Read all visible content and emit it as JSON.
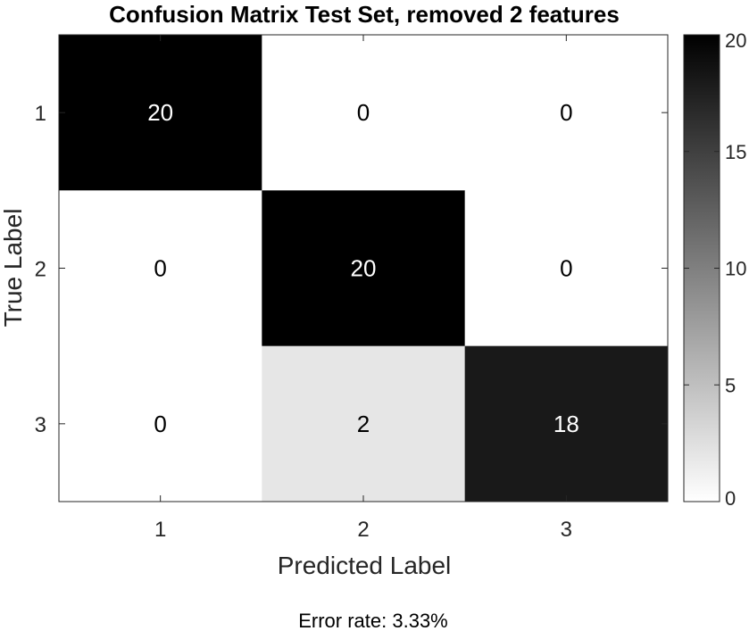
{
  "chart_data": {
    "type": "heatmap",
    "title": "Confusion Matrix Test Set, removed 2 features",
    "xlabel": "Predicted Label",
    "ylabel": "True Label",
    "x_categories": [
      "1",
      "2",
      "3"
    ],
    "y_categories": [
      "1",
      "2",
      "3"
    ],
    "matrix": [
      [
        20,
        0,
        0
      ],
      [
        0,
        20,
        0
      ],
      [
        0,
        2,
        18
      ]
    ],
    "colormap": "gray-reversed",
    "colorbar": {
      "range": [
        0,
        20
      ],
      "ticks": [
        0,
        5,
        10,
        15,
        20
      ],
      "tick_labels": [
        "0",
        "5",
        "10",
        "15",
        "20"
      ]
    },
    "footnote": "Error rate: 3.33%"
  }
}
